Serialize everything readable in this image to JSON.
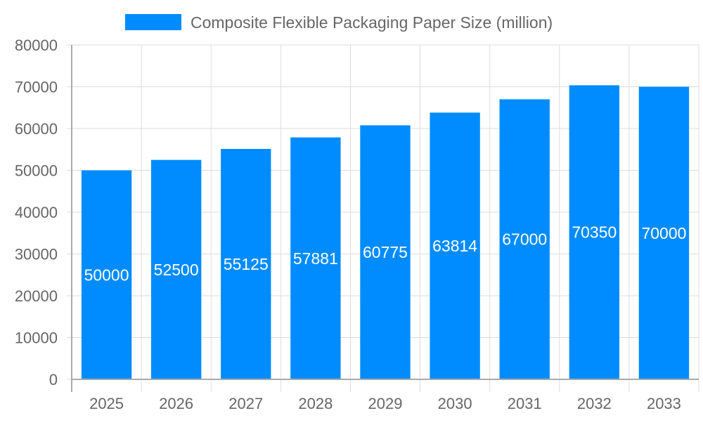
{
  "chart_data": {
    "type": "bar",
    "categories": [
      "2025",
      "2026",
      "2027",
      "2028",
      "2029",
      "2030",
      "2031",
      "2032",
      "2033"
    ],
    "series": [
      {
        "name": "Composite Flexible Packaging Paper Size (million)",
        "values": [
          50000,
          52500,
          55125,
          57881,
          60775,
          63814,
          67000,
          70350,
          70000
        ]
      }
    ],
    "ylim": [
      0,
      80000
    ],
    "yticks": [
      0,
      10000,
      20000,
      30000,
      40000,
      50000,
      60000,
      70000,
      80000
    ],
    "grid": true,
    "legend": "top",
    "data_labels": true,
    "colors": {
      "bar": "#008cff",
      "grid": "#dddddd",
      "axis": "#aaaaaa",
      "text": "#666666",
      "label": "#ffffff"
    }
  }
}
